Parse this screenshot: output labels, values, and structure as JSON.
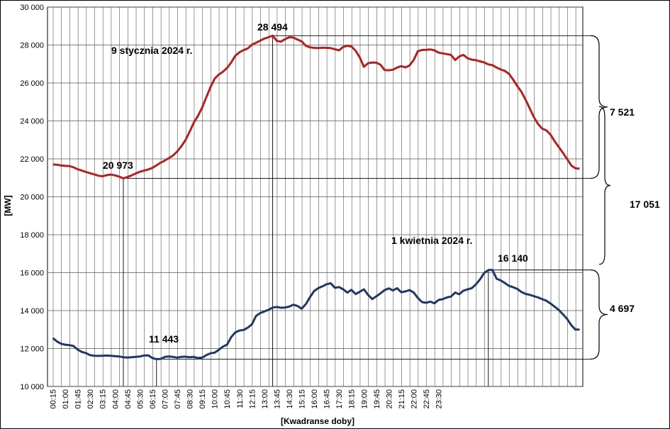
{
  "chart_data": {
    "type": "line",
    "xlabel": "[Kwadranse doby]",
    "ylabel": "[MW]",
    "ylim": [
      10000,
      30000
    ],
    "y_ticks": [
      "10 000",
      "12 000",
      "14 000",
      "16 000",
      "18 000",
      "20 000",
      "22 000",
      "24 000",
      "26 000",
      "28 000",
      "30 000"
    ],
    "x_labels": [
      "00:15",
      "01:00",
      "01:45",
      "02:30",
      "03:15",
      "04:00",
      "04:45",
      "05:30",
      "06:15",
      "07:00",
      "07:45",
      "08:30",
      "09:15",
      "10:00",
      "10:45",
      "11:30",
      "12:15",
      "13:00",
      "13:45",
      "14:30",
      "15:15",
      "16:00",
      "16:45",
      "17:30",
      "18:15",
      "19:00",
      "19:45",
      "20:30",
      "21:15",
      "22:00",
      "22:45",
      "23:30"
    ],
    "series": [
      {
        "name": "9 stycznia 2024 r.",
        "color": "#b22222",
        "values": [
          21700,
          21690,
          21650,
          21630,
          21620,
          21550,
          21450,
          21380,
          21310,
          21240,
          21180,
          21110,
          21080,
          21140,
          21170,
          21130,
          21060,
          20973,
          21040,
          21130,
          21230,
          21320,
          21380,
          21440,
          21520,
          21660,
          21800,
          21910,
          22040,
          22180,
          22390,
          22670,
          22990,
          23440,
          23910,
          24270,
          24700,
          25250,
          25770,
          26220,
          26440,
          26590,
          26790,
          27080,
          27430,
          27620,
          27730,
          27820,
          28020,
          28120,
          28230,
          28340,
          28410,
          28494,
          28220,
          28180,
          28310,
          28410,
          28390,
          28290,
          28190,
          27960,
          27880,
          27850,
          27840,
          27860,
          27850,
          27840,
          27780,
          27720,
          27900,
          27960,
          27920,
          27700,
          27350,
          26850,
          27040,
          27080,
          27070,
          26960,
          26680,
          26670,
          26700,
          26810,
          26890,
          26820,
          26920,
          27210,
          27670,
          27740,
          27750,
          27770,
          27720,
          27600,
          27560,
          27520,
          27480,
          27210,
          27400,
          27480,
          27300,
          27230,
          27200,
          27140,
          27080,
          26980,
          26940,
          26810,
          26710,
          26630,
          26480,
          26170,
          25830,
          25520,
          25110,
          24650,
          24190,
          23830,
          23590,
          23500,
          23280,
          22920,
          22620,
          22310,
          21990,
          21650,
          21500,
          21480
        ]
      },
      {
        "name": "1 kwietnia 2024 r.",
        "color": "#1f3864",
        "values": [
          12550,
          12370,
          12250,
          12200,
          12180,
          12130,
          11940,
          11820,
          11760,
          11650,
          11620,
          11610,
          11620,
          11630,
          11620,
          11600,
          11580,
          11540,
          11520,
          11540,
          11560,
          11580,
          11630,
          11640,
          11500,
          11443,
          11450,
          11560,
          11580,
          11560,
          11520,
          11560,
          11570,
          11540,
          11560,
          11500,
          11520,
          11650,
          11750,
          11780,
          11930,
          12100,
          12200,
          12600,
          12850,
          12950,
          12980,
          13100,
          13280,
          13720,
          13870,
          13950,
          14040,
          14160,
          14190,
          14150,
          14160,
          14210,
          14310,
          14240,
          14100,
          14340,
          14710,
          15030,
          15180,
          15280,
          15390,
          15440,
          15200,
          15240,
          15120,
          14950,
          15090,
          14870,
          14990,
          15120,
          14830,
          14610,
          14750,
          14910,
          15080,
          15170,
          15060,
          15180,
          14970,
          15010,
          15080,
          14950,
          14670,
          14450,
          14410,
          14470,
          14380,
          14560,
          14600,
          14690,
          14740,
          14950,
          14860,
          15050,
          15120,
          15180,
          15380,
          15650,
          15980,
          16140,
          16140,
          15680,
          15590,
          15450,
          15300,
          15230,
          15140,
          14980,
          14880,
          14830,
          14760,
          14690,
          14600,
          14520,
          14370,
          14200,
          14030,
          13800,
          13560,
          13230,
          13000,
          13000
        ]
      }
    ],
    "annotations": {
      "max_jan": "28 494",
      "min_jan": "20 973",
      "max_apr": "16 140",
      "min_apr": "11 443",
      "range_jan": "7 521",
      "range_apr": "4 697",
      "peak_diff": "17 051"
    },
    "grid": true
  }
}
